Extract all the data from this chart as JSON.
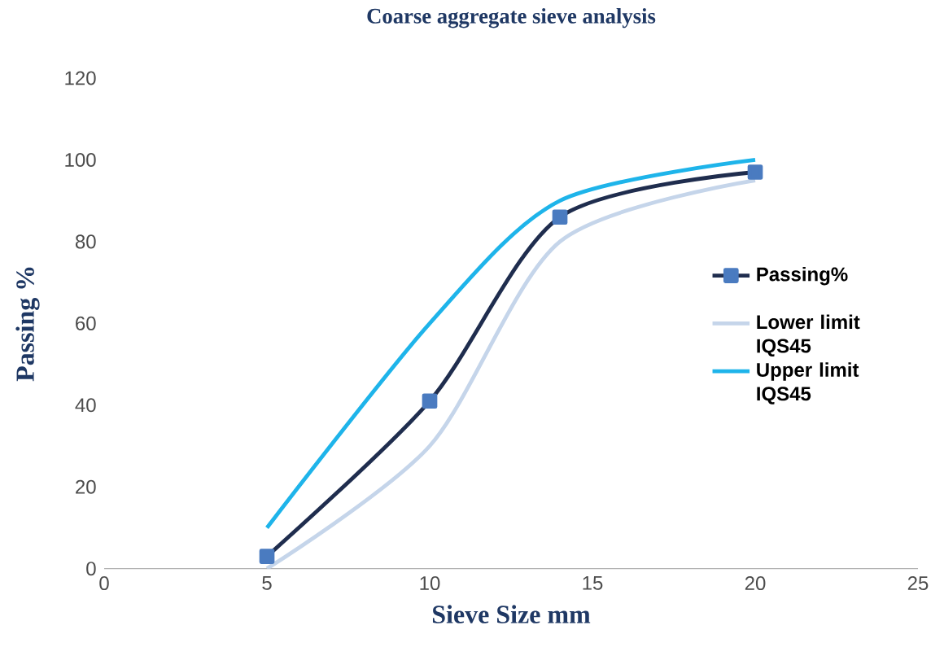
{
  "chart_data": {
    "type": "line",
    "title": "Coarse aggregate sieve analysis",
    "xlabel": "Sieve Size mm",
    "ylabel": "Passing %",
    "x": [
      5,
      10,
      14,
      20
    ],
    "series": [
      {
        "name": "Passing%",
        "color": "#1f2d4e",
        "marker": "square",
        "values": [
          3,
          41,
          86,
          97
        ]
      },
      {
        "name": "Lower limit IQS45",
        "color": "#c5d5ea",
        "marker": "none",
        "values": [
          0,
          30,
          80,
          95
        ]
      },
      {
        "name": "Upper limit IQS45",
        "color": "#1eb4ea",
        "marker": "none",
        "values": [
          10,
          60,
          90,
          100
        ]
      }
    ],
    "xlim": [
      0,
      25
    ],
    "xticks": [
      0,
      5,
      10,
      15,
      20,
      25
    ],
    "ylim": [
      0,
      120
    ],
    "yticks": [
      0,
      20,
      40,
      60,
      80,
      100,
      120
    ],
    "grid": false,
    "legend": "right",
    "line_style": "solid"
  }
}
